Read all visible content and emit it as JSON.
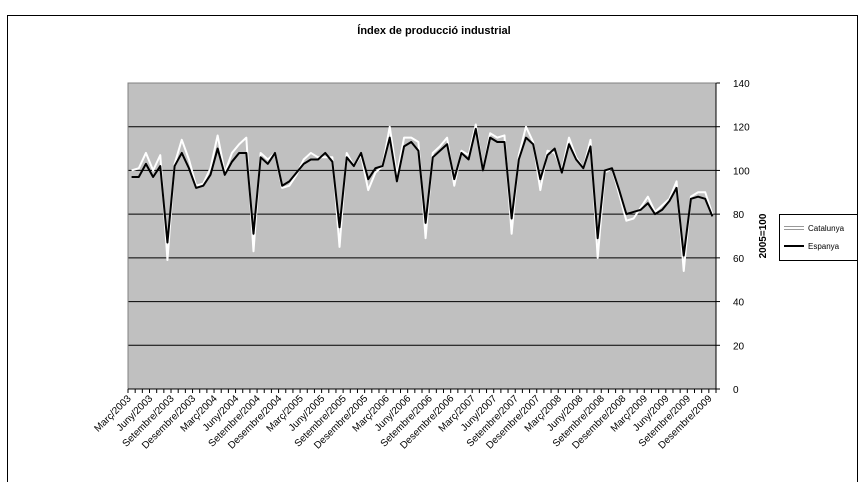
{
  "chart_data": {
    "type": "line",
    "title": "Índex de producció industrial",
    "y_label": "2005=100",
    "categories": [
      "Març/2003",
      null,
      null,
      "Juny/2003",
      null,
      null,
      "Setembre/2003",
      null,
      null,
      "Desembre/2003",
      null,
      null,
      "Març/2004",
      null,
      null,
      "Juny/2004",
      null,
      null,
      "Setembre/2004",
      null,
      null,
      "Desembre/2004",
      null,
      null,
      "Març/2005",
      null,
      null,
      "Juny/2005",
      null,
      null,
      "Setembre/2005",
      null,
      null,
      "Desembre/2005",
      null,
      null,
      "Març/2006",
      null,
      null,
      "Juny/2006",
      null,
      null,
      "Setembre/2006",
      null,
      null,
      "Desembre/2006",
      null,
      null,
      "Març/2007",
      null,
      null,
      "Juny/2007",
      null,
      null,
      "Setembre/2007",
      null,
      null,
      "Desembre/2007",
      null,
      null,
      "Març/2008",
      null,
      null,
      "Juny/2008",
      null,
      null,
      "Setembre/2008",
      null,
      null,
      "Desembre/2008",
      null,
      null,
      "Març/2009",
      null,
      null,
      "Juny/2009",
      null,
      null,
      "Setembre/2009",
      null,
      null,
      "Desembre/2009"
    ],
    "series": [
      {
        "name": "Catalunya",
        "color": "#ffffff",
        "values": [
          100,
          101,
          108,
          100,
          107,
          59,
          103,
          114,
          105,
          93,
          94,
          101,
          116,
          99,
          108,
          112,
          115,
          63,
          108,
          105,
          108,
          92,
          93,
          98,
          105,
          108,
          106,
          106,
          106,
          65,
          108,
          102,
          107,
          91,
          99,
          102,
          120,
          98,
          115,
          115,
          113,
          69,
          108,
          111,
          115,
          93,
          109,
          107,
          121,
          100,
          117,
          115,
          116,
          71,
          107,
          120,
          113,
          91,
          109,
          108,
          100,
          115,
          106,
          101,
          114,
          60,
          99,
          101,
          89,
          77,
          78,
          83,
          88,
          81,
          84,
          87,
          95,
          54,
          88,
          90,
          90,
          80
        ]
      },
      {
        "name": "Espanya",
        "color": "#000000",
        "values": [
          97,
          97,
          103,
          97,
          102,
          67,
          102,
          108,
          101,
          92,
          93,
          98,
          110,
          98,
          104,
          108,
          108,
          71,
          106,
          103,
          108,
          93,
          95,
          99,
          103,
          105,
          105,
          108,
          104,
          74,
          106,
          102,
          108,
          96,
          101,
          102,
          115,
          95,
          111,
          113,
          109,
          76,
          106,
          109,
          112,
          96,
          108,
          105,
          119,
          100,
          115,
          113,
          113,
          78,
          105,
          115,
          112,
          96,
          107,
          110,
          99,
          112,
          105,
          101,
          111,
          69,
          100,
          101,
          91,
          80,
          81,
          82,
          85,
          80,
          82,
          86,
          92,
          61,
          87,
          88,
          87,
          79
        ]
      }
    ],
    "ylim": [
      0,
      140
    ],
    "yticks": [
      0,
      20,
      40,
      60,
      80,
      100,
      120,
      140
    ],
    "grid": true,
    "plot_background": "#c0c0c0",
    "legend": "right"
  }
}
